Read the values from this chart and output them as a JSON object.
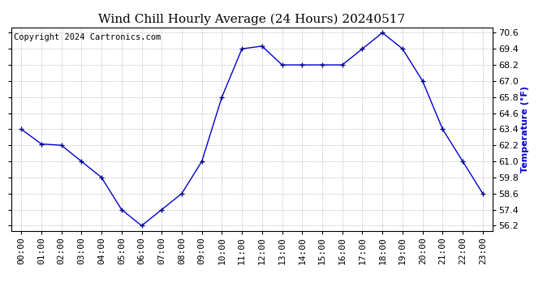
{
  "title": "Wind Chill Hourly Average (24 Hours) 20240517",
  "ylabel": "Temperature (°F)",
  "copyright_text": "Copyright 2024 Cartronics.com",
  "line_color": "#0000cc",
  "marker_color": "#000080",
  "background_color": "#ffffff",
  "grid_color": "#aaaaaa",
  "ylabel_color": "#0000cc",
  "hours": [
    0,
    1,
    2,
    3,
    4,
    5,
    6,
    7,
    8,
    9,
    10,
    11,
    12,
    13,
    14,
    15,
    16,
    17,
    18,
    19,
    20,
    21,
    22,
    23
  ],
  "x_labels": [
    "00:00",
    "01:00",
    "02:00",
    "03:00",
    "04:00",
    "05:00",
    "06:00",
    "07:00",
    "08:00",
    "09:00",
    "10:00",
    "11:00",
    "12:00",
    "13:00",
    "14:00",
    "15:00",
    "16:00",
    "17:00",
    "18:00",
    "19:00",
    "20:00",
    "21:00",
    "22:00",
    "23:00"
  ],
  "values": [
    63.4,
    62.3,
    62.2,
    61.0,
    59.8,
    57.4,
    56.2,
    57.4,
    58.6,
    61.0,
    65.8,
    69.4,
    69.6,
    68.2,
    68.2,
    68.2,
    68.2,
    69.4,
    70.6,
    69.4,
    67.0,
    63.4,
    61.0,
    58.6
  ],
  "ylim_min": 55.8,
  "ylim_max": 71.0,
  "ytick_values": [
    56.2,
    57.4,
    58.6,
    59.8,
    61.0,
    62.2,
    63.4,
    64.6,
    65.8,
    67.0,
    68.2,
    69.4,
    70.6
  ],
  "title_fontsize": 11,
  "label_fontsize": 8,
  "tick_fontsize": 8,
  "copyright_fontsize": 7.5
}
